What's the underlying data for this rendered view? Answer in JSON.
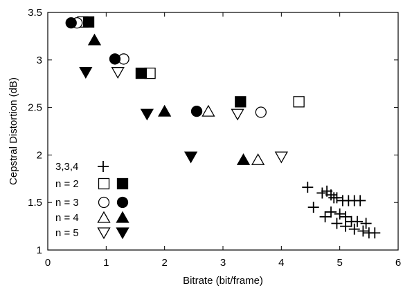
{
  "chart_data": {
    "type": "scatter",
    "xlabel": "Bitrate (bit/frame)",
    "ylabel": "Cepstral Distortion (dB)",
    "xlim": [
      0,
      6
    ],
    "ylim": [
      1,
      3.5
    ],
    "xticks": [
      "0",
      "1",
      "2",
      "3",
      "4",
      "5",
      "6"
    ],
    "yticks": [
      "1",
      "1.5",
      "2",
      "2.5",
      "3",
      "3.5"
    ],
    "grid": false,
    "legend_position": "bottom-left",
    "legend": [
      "3,3,4",
      "n = 2",
      "n = 3",
      "n = 4",
      "n = 5"
    ],
    "series": [
      {
        "name": "3,3,4",
        "marker": "plus",
        "filled": false,
        "x": [
          4.45,
          4.55,
          4.7,
          4.78,
          4.85,
          4.75,
          4.9,
          4.95,
          5.05,
          5.15,
          5.25,
          5.35,
          4.85,
          5.0,
          5.1,
          5.2,
          5.3,
          5.45,
          4.95,
          5.1,
          5.25,
          5.4,
          5.5,
          5.6
        ],
        "y": [
          1.66,
          1.45,
          1.6,
          1.62,
          1.58,
          1.35,
          1.55,
          1.55,
          1.52,
          1.52,
          1.52,
          1.52,
          1.4,
          1.38,
          1.35,
          1.3,
          1.3,
          1.28,
          1.28,
          1.25,
          1.22,
          1.2,
          1.18,
          1.18
        ]
      },
      {
        "name": "n = 2",
        "marker": "square",
        "filled": false,
        "x": [
          0.6,
          1.75,
          4.3
        ],
        "y": [
          3.4,
          2.86,
          2.56
        ]
      },
      {
        "name": "n = 2",
        "marker": "square",
        "filled": true,
        "x": [
          0.7,
          1.6,
          3.3
        ],
        "y": [
          3.4,
          2.86,
          2.56
        ]
      },
      {
        "name": "n = 3",
        "marker": "circle",
        "filled": false,
        "x": [
          0.5,
          1.3,
          3.65
        ],
        "y": [
          3.39,
          3.01,
          2.45
        ]
      },
      {
        "name": "n = 3",
        "marker": "circle",
        "filled": true,
        "x": [
          0.4,
          1.15,
          2.55
        ],
        "y": [
          3.39,
          3.01,
          2.46
        ]
      },
      {
        "name": "n = 4",
        "marker": "triangle-up",
        "filled": false,
        "x": [
          2.75,
          3.6
        ],
        "y": [
          2.46,
          1.95
        ]
      },
      {
        "name": "n = 4",
        "marker": "triangle-up",
        "filled": true,
        "x": [
          0.8,
          2.0,
          3.35
        ],
        "y": [
          3.21,
          2.46,
          1.95
        ]
      },
      {
        "name": "n = 5",
        "marker": "triangle-down",
        "filled": false,
        "x": [
          1.2,
          3.25,
          4.0
        ],
        "y": [
          2.87,
          2.43,
          1.98
        ]
      },
      {
        "name": "n = 5",
        "marker": "triangle-down",
        "filled": true,
        "x": [
          0.65,
          1.7,
          2.45
        ],
        "y": [
          2.87,
          2.43,
          1.98
        ]
      }
    ],
    "legend_entries": [
      {
        "label": "3,3,4",
        "markers": [
          {
            "marker": "plus",
            "filled": false
          }
        ]
      },
      {
        "label": "n = 2",
        "markers": [
          {
            "marker": "square",
            "filled": false
          },
          {
            "marker": "square",
            "filled": true
          }
        ]
      },
      {
        "label": "n = 3",
        "markers": [
          {
            "marker": "circle",
            "filled": false
          },
          {
            "marker": "circle",
            "filled": true
          }
        ]
      },
      {
        "label": "n = 4",
        "markers": [
          {
            "marker": "triangle-up",
            "filled": false
          },
          {
            "marker": "triangle-up",
            "filled": true
          }
        ]
      },
      {
        "label": "n = 5",
        "markers": [
          {
            "marker": "triangle-down",
            "filled": false
          },
          {
            "marker": "triangle-down",
            "filled": true
          }
        ]
      }
    ]
  }
}
